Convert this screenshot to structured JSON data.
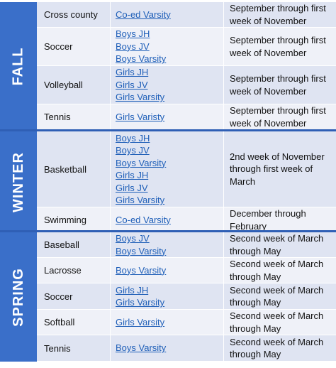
{
  "seasons": [
    {
      "name": "FALL",
      "rows": [
        {
          "sport": "Cross county",
          "teams": [
            "Co-ed Varsity"
          ],
          "dates": "September through first week of November"
        },
        {
          "sport": "Soccer",
          "teams": [
            "Boys JH",
            "Boys JV",
            "Boys Varsity"
          ],
          "dates": "September through first week of November"
        },
        {
          "sport": "Volleyball",
          "teams": [
            "Girls JH",
            "Girls JV",
            "Girls Varsity"
          ],
          "dates": "September through first week of November"
        },
        {
          "sport": "Tennis",
          "teams": [
            "Girls Varisty"
          ],
          "dates": "September through first week of November"
        }
      ]
    },
    {
      "name": "WINTER",
      "rows": [
        {
          "sport": "Basketball",
          "teams": [
            "Boys JH",
            "Boys JV",
            "Boys Varsity",
            "Girls JH",
            "Girls JV",
            "Girls Varsity"
          ],
          "dates": "2nd week of November through first week of March"
        },
        {
          "sport": "Swimming",
          "teams": [
            "Co-ed Varsity"
          ],
          "dates": "December through February"
        }
      ]
    },
    {
      "name": "SPRING",
      "rows": [
        {
          "sport": "Baseball",
          "teams": [
            "Boys JV",
            "Boys Varsity"
          ],
          "dates": "Second week of March through May"
        },
        {
          "sport": "Lacrosse",
          "teams": [
            "Boys Varsity"
          ],
          "dates": "Second week of March through May"
        },
        {
          "sport": "Soccer",
          "teams": [
            "Girls JH",
            "Girls Varsity"
          ],
          "dates": "Second week of March through May"
        },
        {
          "sport": "Softball",
          "teams": [
            "Girls Varsity"
          ],
          "dates": "Second week of March through May"
        },
        {
          "sport": "Tennis",
          "teams": [
            "Boys Varsity"
          ],
          "dates": "Second week of March through May"
        }
      ]
    }
  ],
  "colors": {
    "season_band": "#3a6fc9",
    "row_alt": "#dfe4f2",
    "row_plain": "#eff1f8",
    "link": "#1f5fb8",
    "divider": "#2f5fb5"
  }
}
